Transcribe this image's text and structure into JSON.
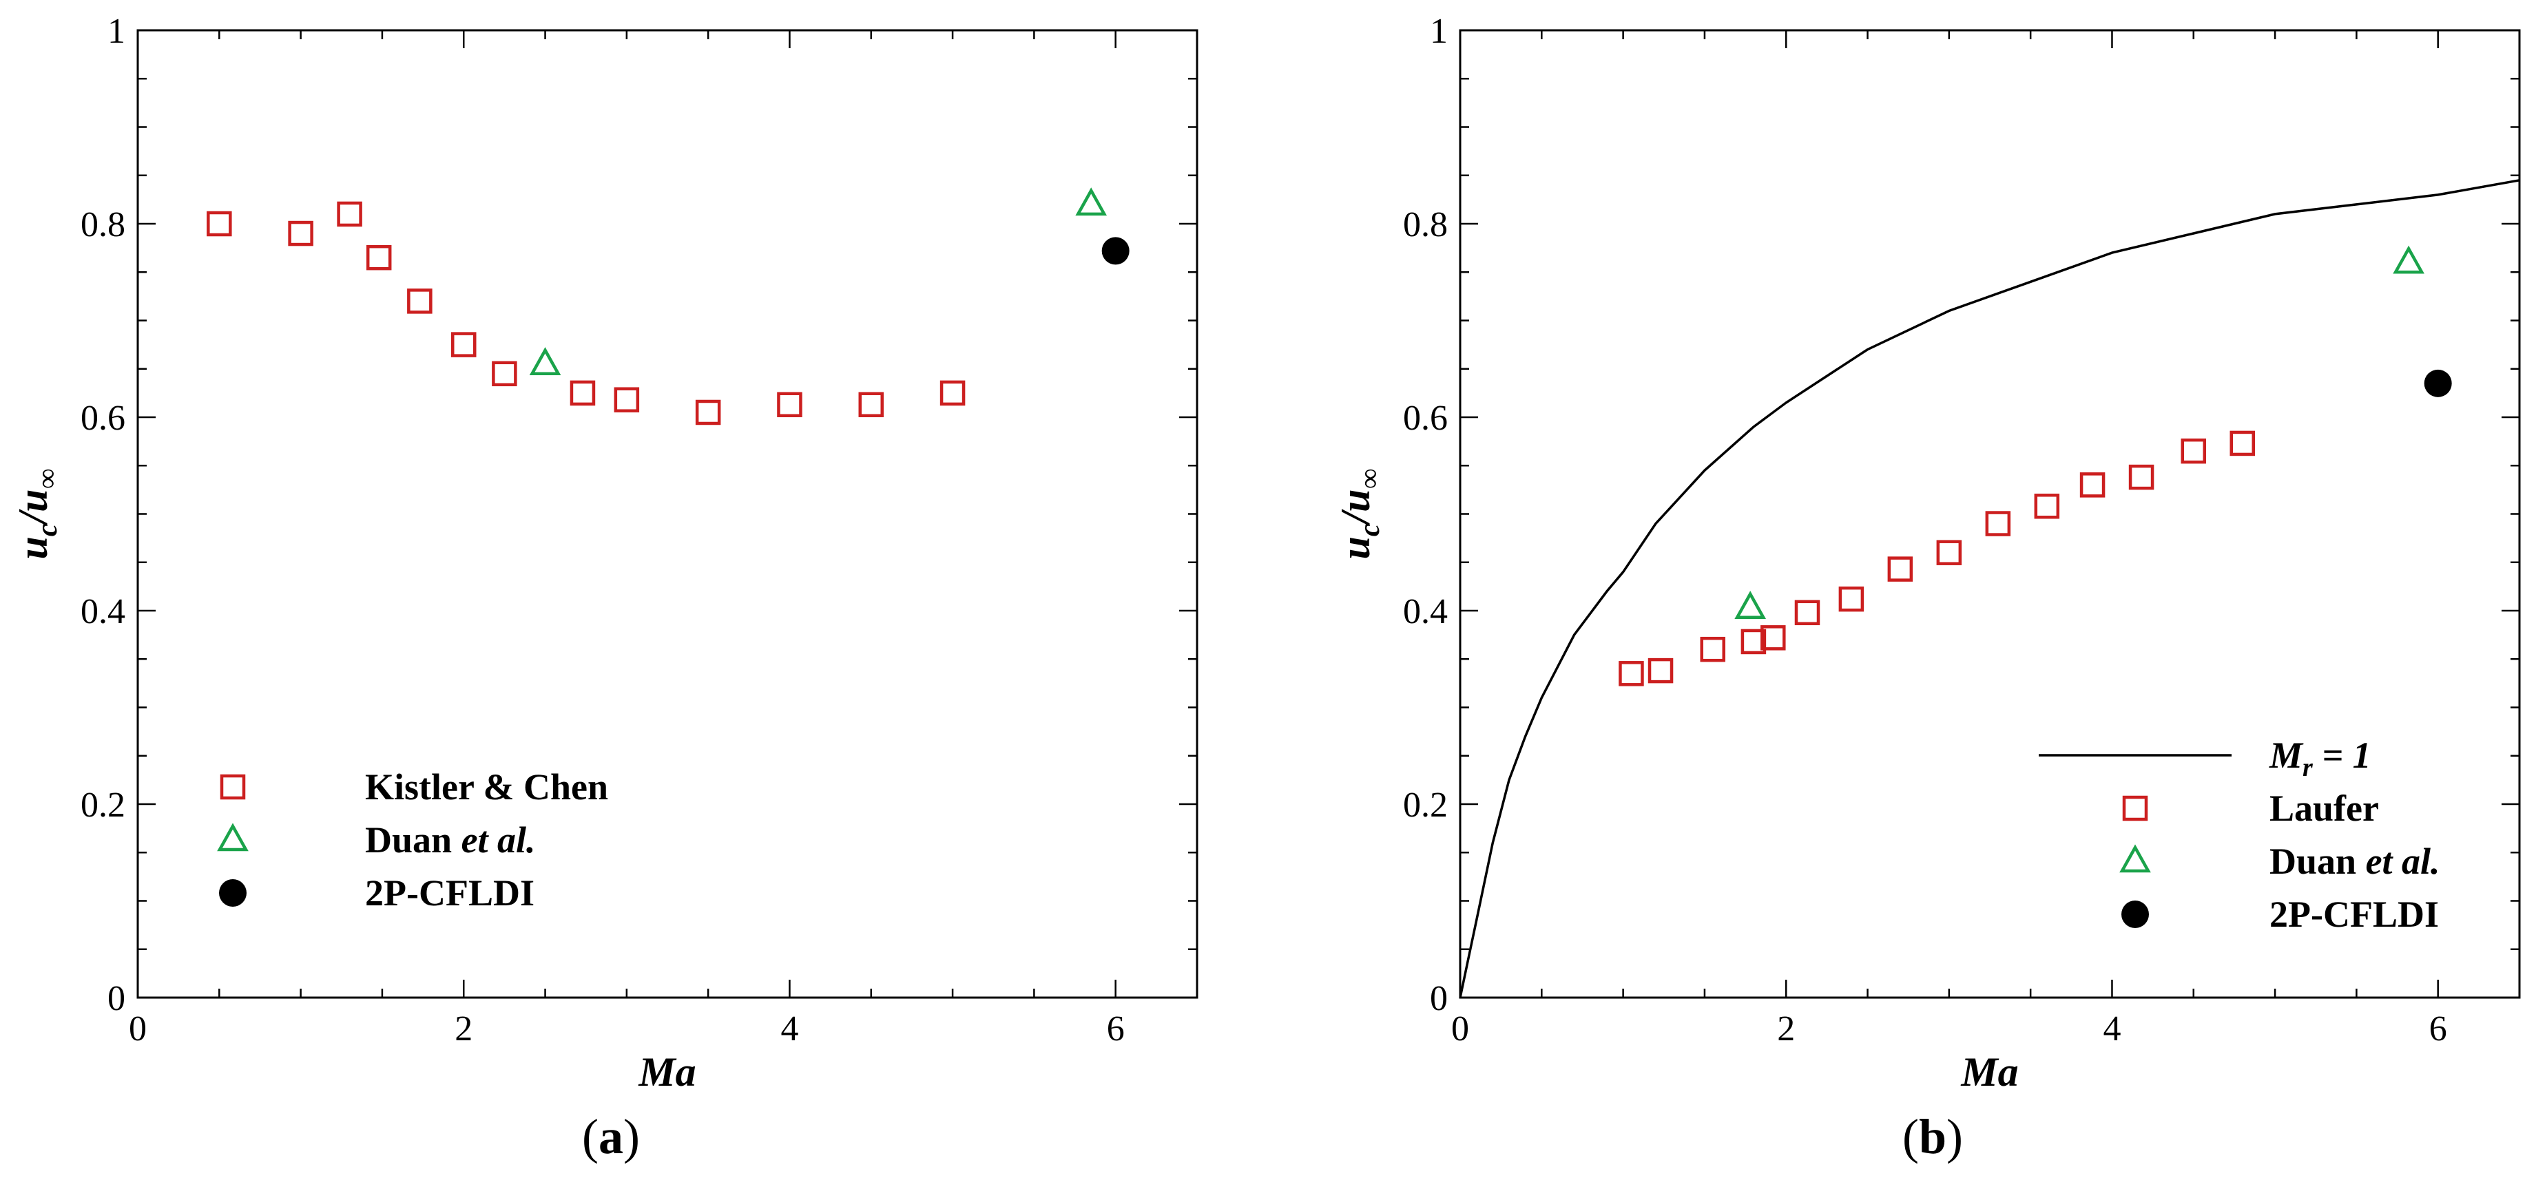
{
  "chart_data": [
    {
      "type": "scatter",
      "panel_label": "a",
      "xlabel": "Ma",
      "ylabel": {
        "main": "u",
        "sub1": "c",
        "sep": "/",
        "main2": "u",
        "sub2": "∞"
      },
      "xlim": [
        0,
        6.5
      ],
      "ylim": [
        0,
        1
      ],
      "xticks": [
        0,
        2,
        4,
        6
      ],
      "yticks": [
        0,
        0.2,
        0.4,
        0.6,
        0.8,
        1
      ],
      "ytick_labels": [
        "0",
        "0.2",
        "0.4",
        "0.6",
        "0.8",
        "1"
      ],
      "legend_position": "bottom-left",
      "series": [
        {
          "name": "Kistler & Chen",
          "marker": "square",
          "color": "#cc1f1f",
          "x": [
            0.5,
            1.0,
            1.3,
            1.48,
            1.73,
            2.0,
            2.25,
            2.73,
            3.0,
            3.5,
            4.0,
            4.5,
            5.0
          ],
          "y": [
            0.8,
            0.79,
            0.81,
            0.765,
            0.72,
            0.675,
            0.645,
            0.625,
            0.618,
            0.605,
            0.613,
            0.613,
            0.625
          ]
        },
        {
          "name": "Duan et al.",
          "marker": "triangle",
          "color": "#1aa34a",
          "x": [
            2.5,
            5.85
          ],
          "y": [
            0.655,
            0.82
          ]
        },
        {
          "name": "2P-CFLDI",
          "marker": "circle",
          "color": "#000000",
          "x": [
            6.0
          ],
          "y": [
            0.772
          ]
        }
      ]
    },
    {
      "type": "scatter",
      "panel_label": "b",
      "xlabel": "Ma",
      "ylabel": {
        "main": "u",
        "sub1": "c",
        "sep": "/",
        "main2": "u",
        "sub2": "∞"
      },
      "xlim": [
        0,
        6.5
      ],
      "ylim": [
        0,
        1
      ],
      "xticks": [
        0,
        2,
        4,
        6
      ],
      "yticks": [
        0,
        0.2,
        0.4,
        0.6,
        0.8,
        1
      ],
      "ytick_labels": [
        "0",
        "0.2",
        "0.4",
        "0.6",
        "0.8",
        "1"
      ],
      "legend_position": "bottom-right",
      "series": [
        {
          "name": "M_r = 1",
          "legend_main": "M",
          "legend_sub": "r",
          "legend_rest": " = 1",
          "marker": "line",
          "color": "#000000",
          "x": [
            0.0,
            0.05,
            0.1,
            0.2,
            0.3,
            0.4,
            0.5,
            0.7,
            0.9,
            1.0,
            1.2,
            1.5,
            1.8,
            2.0,
            2.5,
            3.0,
            3.5,
            4.0,
            4.5,
            5.0,
            5.5,
            6.0,
            6.5
          ],
          "y": [
            0.0,
            0.04,
            0.08,
            0.16,
            0.225,
            0.27,
            0.31,
            0.375,
            0.42,
            0.44,
            0.49,
            0.545,
            0.59,
            0.615,
            0.67,
            0.71,
            0.74,
            0.77,
            0.79,
            0.81,
            0.82,
            0.83,
            0.845
          ]
        },
        {
          "name": "Laufer",
          "marker": "square",
          "color": "#cc1f1f",
          "x": [
            1.05,
            1.23,
            1.55,
            1.8,
            1.92,
            2.13,
            2.4,
            2.7,
            3.0,
            3.3,
            3.6,
            3.88,
            4.18,
            4.5,
            4.8
          ],
          "y": [
            0.335,
            0.338,
            0.36,
            0.368,
            0.372,
            0.398,
            0.412,
            0.443,
            0.46,
            0.49,
            0.508,
            0.53,
            0.538,
            0.565,
            0.573
          ]
        },
        {
          "name": "Duan et al.",
          "marker": "triangle",
          "color": "#1aa34a",
          "x": [
            1.78,
            5.82
          ],
          "y": [
            0.403,
            0.76
          ]
        },
        {
          "name": "2P-CFLDI",
          "marker": "circle",
          "color": "#000000",
          "x": [
            6.0
          ],
          "y": [
            0.635
          ]
        }
      ]
    }
  ]
}
